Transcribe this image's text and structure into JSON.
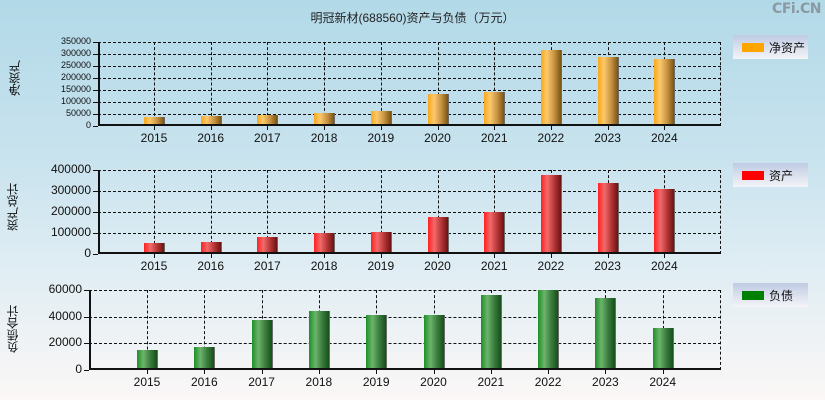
{
  "header": {
    "title": "明冠新材(688560)资产与负债（万元）",
    "watermark": "CFi.CN"
  },
  "chart_data": [
    {
      "type": "bar",
      "title": "明冠新材(688560)资产与负债（万元）",
      "ylabel": "净资产",
      "xlabel": "",
      "categories": [
        "2015",
        "2016",
        "2017",
        "2018",
        "2019",
        "2020",
        "2021",
        "2022",
        "2023",
        "2024"
      ],
      "series": [
        {
          "name": "净资产",
          "color": "#FFA500",
          "values": [
            38000,
            42000,
            46000,
            54500,
            63000,
            134000,
            143000,
            315000,
            286000,
            281000
          ]
        }
      ],
      "ylim": [
        0,
        350000
      ],
      "yticks": [
        "0",
        "50000",
        "100000",
        "150000",
        "200000",
        "250000",
        "300000",
        "350000"
      ],
      "grid": true,
      "legend_position": "right"
    },
    {
      "type": "bar",
      "ylabel": "资产总计",
      "xlabel": "",
      "categories": [
        "2015",
        "2016",
        "2017",
        "2018",
        "2019",
        "2020",
        "2021",
        "2022",
        "2023",
        "2024"
      ],
      "series": [
        {
          "name": "资产",
          "color": "#FF0000",
          "values": [
            54000,
            58000,
            82000,
            101000,
            106000,
            178000,
            201000,
            378000,
            340000,
            311000
          ]
        }
      ],
      "ylim": [
        0,
        400000
      ],
      "yticks": [
        "0",
        "100000",
        "200000",
        "300000",
        "400000"
      ],
      "grid": true,
      "legend_position": "right"
    },
    {
      "type": "bar",
      "ylabel": "负债合计",
      "xlabel": "",
      "categories": [
        "2015",
        "2016",
        "2017",
        "2018",
        "2019",
        "2020",
        "2021",
        "2022",
        "2023",
        "2024"
      ],
      "series": [
        {
          "name": "负债",
          "color": "#008000",
          "values": [
            15200,
            17500,
            37700,
            44500,
            41300,
            41500,
            56500,
            60000,
            54200,
            31700
          ]
        }
      ],
      "ylim": [
        0,
        60000
      ],
      "yticks": [
        "0",
        "20000",
        "40000",
        "60000"
      ],
      "grid": true,
      "legend_position": "right"
    }
  ]
}
